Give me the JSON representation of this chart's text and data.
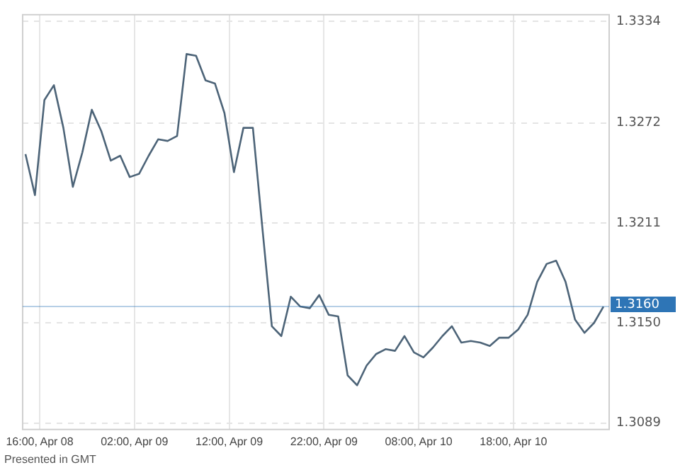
{
  "chart_data": {
    "type": "line",
    "x": [
      "--04-08T14:30",
      "--04-08T15:30",
      "--04-08T16:30",
      "--04-08T17:30",
      "--04-08T18:30",
      "--04-08T19:30",
      "--04-08T20:30",
      "--04-08T21:30",
      "--04-08T22:30",
      "--04-08T23:30",
      "--04-09T00:30",
      "--04-09T01:30",
      "--04-09T02:30",
      "--04-09T03:30",
      "--04-09T04:30",
      "--04-09T05:30",
      "--04-09T06:30",
      "--04-09T07:30",
      "--04-09T08:30",
      "--04-09T09:30",
      "--04-09T10:30",
      "--04-09T11:30",
      "--04-09T12:30",
      "--04-09T13:30",
      "--04-09T14:30",
      "--04-09T15:30",
      "--04-09T16:30",
      "--04-09T17:30",
      "--04-09T18:30",
      "--04-09T19:30",
      "--04-09T20:30",
      "--04-09T21:30",
      "--04-09T22:30",
      "--04-09T23:30",
      "--04-10T00:30",
      "--04-10T01:30",
      "--04-10T02:30",
      "--04-10T03:30",
      "--04-10T04:30",
      "--04-10T05:30",
      "--04-10T06:30",
      "--04-10T07:30",
      "--04-10T08:30",
      "--04-10T09:30",
      "--04-10T10:30",
      "--04-10T11:30",
      "--04-10T12:30",
      "--04-10T13:30",
      "--04-10T14:30",
      "--04-10T15:30",
      "--04-10T16:30",
      "--04-10T17:30",
      "--04-10T18:30",
      "--04-10T19:30",
      "--04-10T20:30",
      "--04-10T21:30",
      "--04-10T22:30",
      "--04-10T23:30",
      "--04-11T00:30",
      "--04-11T01:30",
      "--04-11T02:30",
      "--04-11T03:30"
    ],
    "series": [
      {
        "color": "#4d6478",
        "values": [
          1.3253,
          1.3228,
          1.3286,
          1.3295,
          1.3269,
          1.3233,
          1.3254,
          1.328,
          1.3267,
          1.3249,
          1.3252,
          1.3239,
          1.3241,
          1.3252,
          1.3262,
          1.3261,
          1.3264,
          1.3314,
          1.3313,
          1.3298,
          1.3296,
          1.3278,
          1.3242,
          1.3269,
          1.3269,
          1.3208,
          1.3148,
          1.3142,
          1.3166,
          1.316,
          1.3159,
          1.3167,
          1.3155,
          1.3154,
          1.3118,
          1.3112,
          1.3124,
          1.3131,
          1.3134,
          1.3133,
          1.3142,
          1.3132,
          1.3129,
          1.3135,
          1.3142,
          1.3148,
          1.3138,
          1.3139,
          1.3138,
          1.3136,
          1.3141,
          1.3141,
          1.3146,
          1.3155,
          1.3175,
          1.3186,
          1.3188,
          1.3175,
          1.3152,
          1.3144,
          1.315,
          1.316
        ]
      }
    ],
    "xlim": [
      "--04-08T14:12",
      "--04-11T04:06"
    ],
    "xticks": [
      {
        "value": "--04-08T16:00",
        "label": "16:00, Apr 08"
      },
      {
        "value": "--04-09T02:00",
        "label": "02:00, Apr 09"
      },
      {
        "value": "--04-09T12:00",
        "label": "12:00, Apr 09"
      },
      {
        "value": "--04-09T22:00",
        "label": "22:00, Apr 09"
      },
      {
        "value": "--04-10T08:00",
        "label": "08:00, Apr 10"
      },
      {
        "value": "--04-10T18:00",
        "label": "18:00, Apr 10"
      }
    ],
    "ylim": [
      1.3085,
      1.3338
    ],
    "yticks": [
      1.3089,
      {
        "value": 1.315,
        "label": "1.3150"
      },
      1.3211,
      1.3272,
      1.3334
    ],
    "ref_lines": [
      {
        "axis": "y",
        "value": 1.316,
        "label": "1.3160",
        "color": "#2e75b6"
      }
    ],
    "annotations": [
      "Presented in GMT"
    ],
    "grid": true,
    "legend": false,
    "marker": "none",
    "line_style": "solid"
  }
}
